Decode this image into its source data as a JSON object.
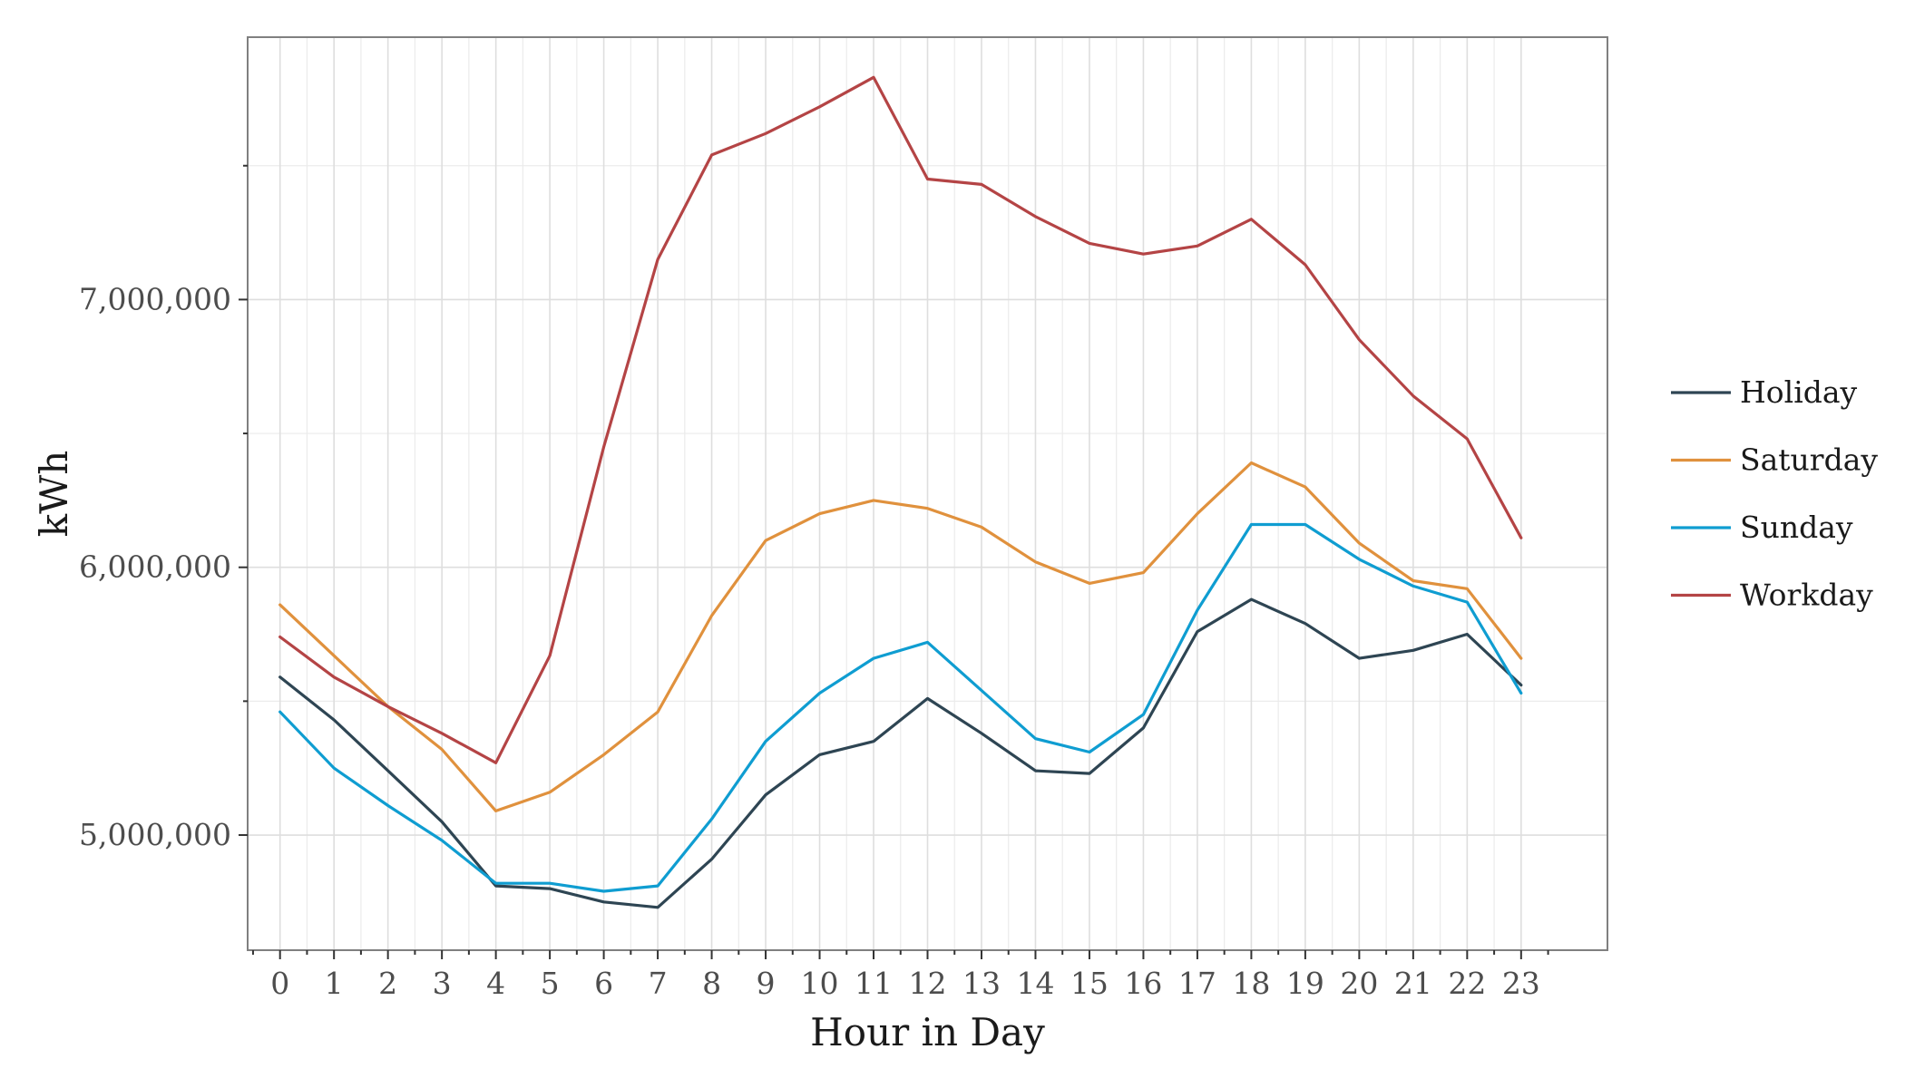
{
  "chart_data": {
    "type": "line",
    "xlabel": "Hour in Day",
    "ylabel": "kWh",
    "x": [
      0,
      1,
      2,
      3,
      4,
      5,
      6,
      7,
      8,
      9,
      10,
      11,
      12,
      13,
      14,
      15,
      16,
      17,
      18,
      19,
      20,
      21,
      22,
      23
    ],
    "x_tick_labels": [
      "0",
      "1",
      "2",
      "3",
      "4",
      "5",
      "6",
      "7",
      "8",
      "9",
      "10",
      "11",
      "12",
      "13",
      "14",
      "15",
      "16",
      "17",
      "18",
      "19",
      "20",
      "21",
      "22",
      "23"
    ],
    "y_ticks": [
      5000000,
      6000000,
      7000000
    ],
    "y_tick_labels": [
      "5,000,000",
      "6,000,000",
      "7,000,000"
    ],
    "xlim": [
      -0.6,
      24.6
    ],
    "ylim": [
      4570000,
      7980000
    ],
    "grid": true,
    "legend_position": "right",
    "series": [
      {
        "name": "Holiday",
        "color": "#2e4553",
        "values": [
          5590000,
          5430000,
          5240000,
          5050000,
          4810000,
          4800000,
          4750000,
          4730000,
          4910000,
          5150000,
          5300000,
          5350000,
          5510000,
          5380000,
          5240000,
          5230000,
          5400000,
          5760000,
          5880000,
          5790000,
          5660000,
          5690000,
          5750000,
          5560000
        ]
      },
      {
        "name": "Saturday",
        "color": "#e0913d",
        "values": [
          5860000,
          5670000,
          5480000,
          5320000,
          5090000,
          5160000,
          5300000,
          5460000,
          5820000,
          6100000,
          6200000,
          6250000,
          6220000,
          6150000,
          6020000,
          5940000,
          5980000,
          6200000,
          6390000,
          6300000,
          6090000,
          5950000,
          5920000,
          5660000
        ]
      },
      {
        "name": "Sunday",
        "color": "#0f9dd1",
        "values": [
          5460000,
          5250000,
          5110000,
          4980000,
          4820000,
          4820000,
          4790000,
          4810000,
          5060000,
          5350000,
          5530000,
          5660000,
          5720000,
          5540000,
          5360000,
          5310000,
          5450000,
          5840000,
          6160000,
          6160000,
          6030000,
          5930000,
          5870000,
          5530000
        ]
      },
      {
        "name": "Workday",
        "color": "#b44445",
        "values": [
          5740000,
          5590000,
          5480000,
          5380000,
          5270000,
          5670000,
          6450000,
          7150000,
          7540000,
          7620000,
          7720000,
          7830000,
          7450000,
          7430000,
          7310000,
          7210000,
          7170000,
          7200000,
          7300000,
          7130000,
          6850000,
          6640000,
          6480000,
          6110000
        ]
      }
    ]
  }
}
